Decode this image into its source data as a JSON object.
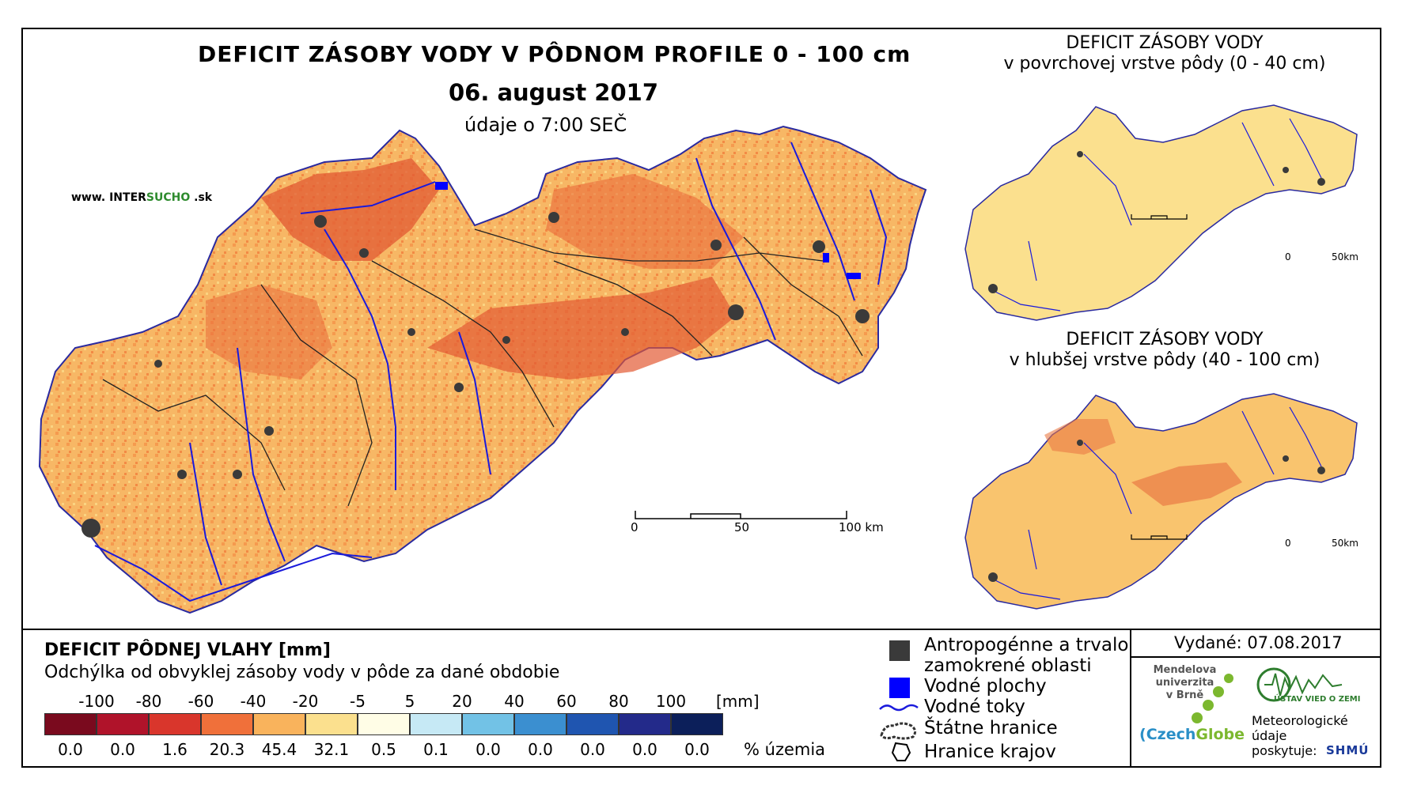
{
  "header": {
    "main_title": "DEFICIT ZÁSOBY VODY V PÔDNOM PROFILE 0 - 100 cm",
    "date": "06. august 2017",
    "time": "údaje o 7:00 SEČ",
    "website_prefix": "www. INTER",
    "website_green": "SUCHO",
    "website_suffix": " .sk"
  },
  "main_map": {
    "scale_labels": [
      "0",
      "50",
      "100 km"
    ]
  },
  "inset_top": {
    "title_line1": "DEFICIT ZÁSOBY VODY",
    "title_line2": "v povrchovej vrstve pôdy (0 - 40 cm)",
    "scale_labels": [
      "0",
      "50km"
    ]
  },
  "inset_bottom": {
    "title_line1": "DEFICIT ZÁSOBY VODY",
    "title_line2": "v hlubšej vrstve pôdy (40 - 100 cm)",
    "scale_labels": [
      "0",
      "50km"
    ]
  },
  "legend": {
    "title": "DEFICIT PÔDNEJ VLAHY [mm]",
    "subtitle": "Odchýlka od obvyklej zásoby vody v pôde za dané obdobie",
    "scale_values": [
      "-100",
      "-80",
      "-60",
      "-40",
      "-20",
      "-5",
      "5",
      "20",
      "40",
      "60",
      "80",
      "100"
    ],
    "unit": "[mm]",
    "classes": [
      {
        "color": "#7a0a1e",
        "percent": "0.0"
      },
      {
        "color": "#b0132a",
        "percent": "0.0"
      },
      {
        "color": "#d9362c",
        "percent": "1.6"
      },
      {
        "color": "#f0703a",
        "percent": "20.3"
      },
      {
        "color": "#f9b35c",
        "percent": "45.4"
      },
      {
        "color": "#fbe08e",
        "percent": "32.1"
      },
      {
        "color": "#fffde6",
        "percent": "0.5"
      },
      {
        "color": "#c6e9f5",
        "percent": "0.1"
      },
      {
        "color": "#72c2e6",
        "percent": "0.0"
      },
      {
        "color": "#3b8fd0",
        "percent": "0.0"
      },
      {
        "color": "#1f55b0",
        "percent": "0.0"
      },
      {
        "color": "#232a8a",
        "percent": "0.0"
      },
      {
        "color": "#0c1f5a",
        "percent": "0.0"
      }
    ],
    "percent_label": "% územia"
  },
  "map_legend": {
    "urban_line1": "Antropogénne a trvalo",
    "urban_line2": "zamokrené oblasti",
    "water_bodies": "Vodné plochy",
    "rivers": "Vodné toky",
    "state_border": "Štátne hranice",
    "region_border": "Hranice krajov",
    "urban_color": "#3a3a3a",
    "water_color": "#0000ff",
    "river_color": "#1a1adc"
  },
  "issued": "Vydané: 07.08.2017",
  "logos": {
    "mendel_line1": "Mendelova",
    "mendel_line2": "univerzita",
    "mendel_line3": "v Brně",
    "czechglobe_a": "Czech",
    "czechglobe_b": "Globe",
    "ustav": "ÚSTAV VIED O ZEMI",
    "met_line1": "Meteorologické",
    "met_line2": "údaje",
    "met_line3": "poskytuje:",
    "shmu": "SHMÚ"
  }
}
